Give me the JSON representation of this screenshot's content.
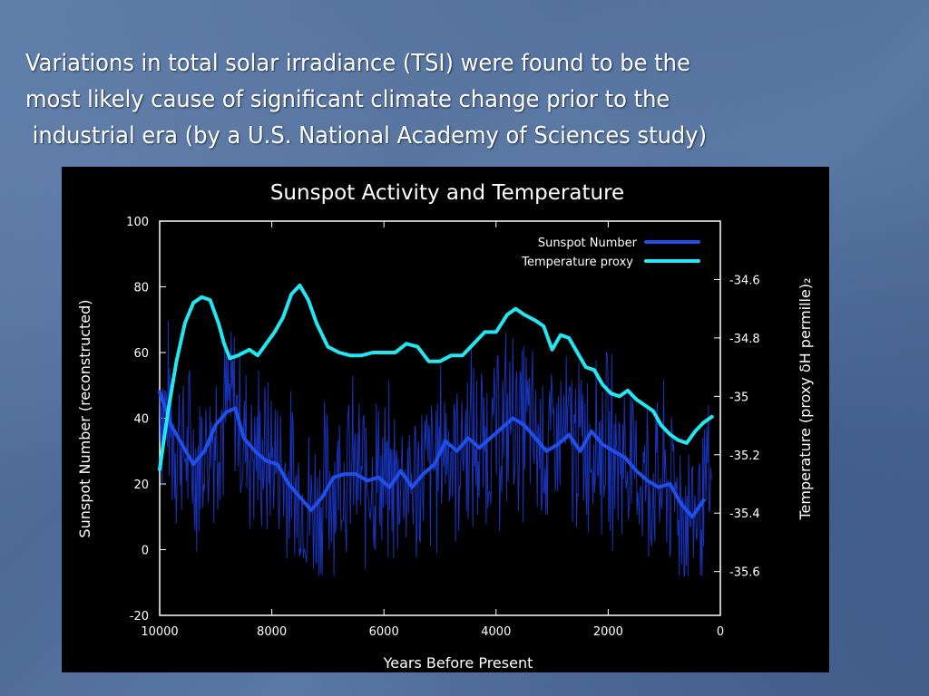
{
  "slide": {
    "text_lines": [
      "Variations in total solar irradiance (TSI) were found to be the",
      "most likely cause of significant climate change prior to the",
      " industrial era (by a U.S. National Academy of Sciences study)"
    ]
  },
  "colors": {
    "sunspot": "#1f4fe6",
    "sunspot_raw": "#1a37c8",
    "temperature": "#22e6f2",
    "panel": "#000000"
  },
  "chart_data": {
    "type": "line",
    "title": "Sunspot Activity and Temperature",
    "xlabel": "Years Before Present",
    "ylabel": "Sunspot Number (reconstructed)",
    "y2label": "Temperature (proxy δH permille)₂",
    "xlim": [
      10000,
      0
    ],
    "ylim": [
      -20,
      100
    ],
    "y2lim": [
      -35.75,
      -34.4
    ],
    "x_ticks": [
      10000,
      8000,
      6000,
      4000,
      2000,
      0
    ],
    "y_ticks": [
      -20,
      0,
      20,
      40,
      60,
      80,
      100
    ],
    "y2_ticks": [
      -34.6,
      -34.8,
      -35,
      -35.2,
      -35.4,
      -35.6
    ],
    "y2_tick_labels": [
      "-34.6",
      "-34.8",
      "-35",
      "-35.2",
      "-35.4",
      "-35.6"
    ],
    "legend_position": "top-right",
    "series": [
      {
        "name": "Sunspot Number",
        "axis": "left",
        "x": [
          10000,
          9800,
          9600,
          9400,
          9200,
          9000,
          8800,
          8650,
          8500,
          8300,
          8100,
          7900,
          7700,
          7500,
          7300,
          7100,
          6900,
          6700,
          6500,
          6300,
          6100,
          5900,
          5700,
          5500,
          5300,
          5100,
          4900,
          4700,
          4500,
          4300,
          4100,
          3900,
          3700,
          3500,
          3300,
          3100,
          2900,
          2700,
          2500,
          2300,
          2100,
          1900,
          1700,
          1500,
          1300,
          1100,
          900,
          700,
          500,
          300
        ],
        "values": [
          48,
          38,
          32,
          26,
          30,
          38,
          42,
          43,
          34,
          30,
          27,
          26,
          20,
          16,
          12,
          16,
          22,
          23,
          23,
          21,
          22,
          19,
          24,
          19,
          23,
          26,
          33,
          30,
          34,
          31,
          34,
          37,
          40,
          38,
          34,
          30,
          32,
          35,
          30,
          36,
          32,
          30,
          28,
          24,
          21,
          19,
          20,
          14,
          10,
          15
        ]
      },
      {
        "name": "Temperature proxy",
        "axis": "right",
        "x": [
          10000,
          9850,
          9700,
          9550,
          9400,
          9250,
          9100,
          8950,
          8850,
          8750,
          8600,
          8400,
          8250,
          8100,
          7950,
          7800,
          7650,
          7500,
          7350,
          7200,
          7000,
          6800,
          6600,
          6400,
          6200,
          6000,
          5800,
          5600,
          5400,
          5200,
          5000,
          4800,
          4600,
          4400,
          4200,
          4000,
          3800,
          3650,
          3500,
          3300,
          3150,
          3000,
          2850,
          2700,
          2550,
          2400,
          2250,
          2100,
          1950,
          1800,
          1650,
          1500,
          1350,
          1200,
          1050,
          900,
          750,
          600,
          450,
          300,
          150
        ],
        "values": [
          -35.25,
          -35.05,
          -34.88,
          -34.75,
          -34.68,
          -34.66,
          -34.67,
          -34.75,
          -34.82,
          -34.87,
          -34.86,
          -34.84,
          -34.86,
          -34.82,
          -34.78,
          -34.73,
          -34.65,
          -34.62,
          -34.67,
          -34.75,
          -34.83,
          -34.85,
          -34.86,
          -34.86,
          -34.85,
          -34.85,
          -34.85,
          -34.82,
          -34.83,
          -34.88,
          -34.88,
          -34.86,
          -34.86,
          -34.82,
          -34.78,
          -34.78,
          -34.72,
          -34.7,
          -34.72,
          -34.74,
          -34.76,
          -34.84,
          -34.79,
          -34.8,
          -34.85,
          -34.9,
          -34.91,
          -34.96,
          -34.99,
          -35.0,
          -34.98,
          -35.01,
          -35.03,
          -35.05,
          -35.1,
          -35.13,
          -35.15,
          -35.16,
          -35.12,
          -35.09,
          -35.07
        ]
      }
    ]
  }
}
